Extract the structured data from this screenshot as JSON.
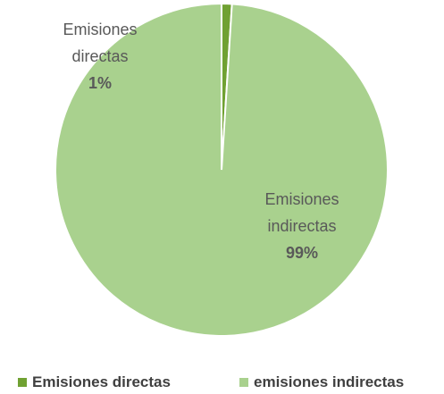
{
  "chart_data": {
    "type": "pie",
    "categories": [
      "Emisiones directas",
      "emisiones indirectas"
    ],
    "label_names": [
      "Emisiones directas",
      "Emisiones indirectas"
    ],
    "values": [
      1,
      99
    ],
    "value_labels": [
      "1%",
      "99%"
    ],
    "colors": [
      "#70a132",
      "#a9d18e"
    ],
    "legend": "bottom"
  }
}
